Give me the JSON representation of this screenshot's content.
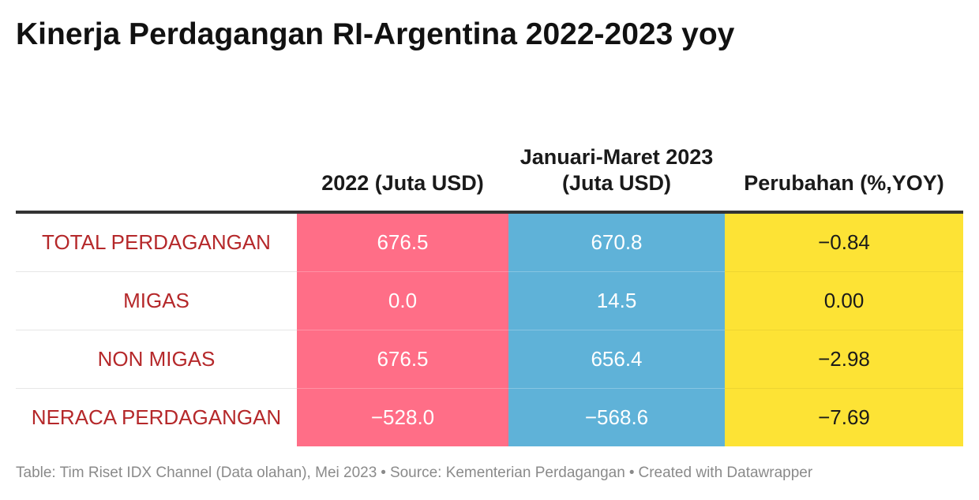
{
  "title": "Kinerja Perdagangan RI-Argentina 2022-2023 yoy",
  "chart_data": {
    "type": "table",
    "title": "Kinerja Perdagangan RI-Argentina 2022-2023 yoy",
    "columns": [
      "",
      "2022 (Juta USD)",
      "Januari-Maret 2023 (Juta USD)",
      "Perubahan (%,YOY)"
    ],
    "rows": [
      {
        "label": "TOTAL PERDAGANGAN",
        "values": [
          "676.5",
          "670.8",
          "−0.84"
        ]
      },
      {
        "label": "MIGAS",
        "values": [
          "0.0",
          "14.5",
          "0.00"
        ]
      },
      {
        "label": "NON MIGAS",
        "values": [
          "676.5",
          "656.4",
          "−2.98"
        ]
      },
      {
        "label": "NERACA PERDAGANGAN",
        "values": [
          "−528.0",
          "−568.6",
          "−7.69"
        ]
      }
    ],
    "column_colors": {
      "2022": "#ff6e87",
      "2023": "#5fb2d8",
      "change": "#fde335"
    },
    "label_color": "#b5282a"
  },
  "footer": {
    "table_credit": "Table: Tim Riset IDX Channel (Data olahan), Mei 2023",
    "source": "Source: Kementerian Perdagangan",
    "created": "Created with Datawrapper",
    "separator": "•"
  }
}
